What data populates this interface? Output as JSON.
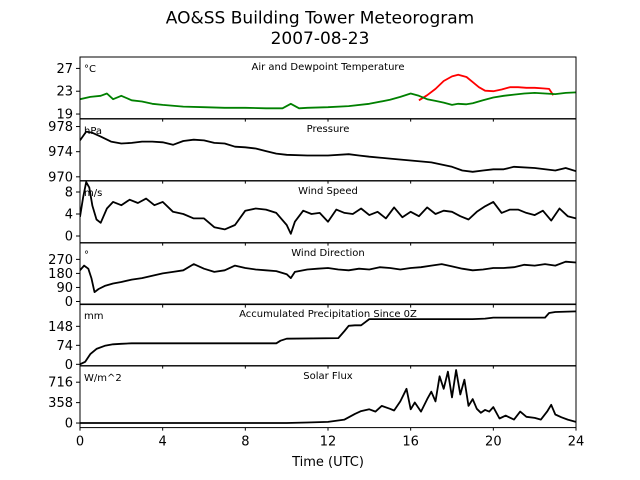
{
  "chart_data": {
    "type": "line",
    "title": "AO&SS Building Tower Meteorogram",
    "subtitle": "2007-08-23",
    "xlabel": "Time (UTC)",
    "xlim": [
      0,
      24
    ],
    "xticks": [
      0,
      4,
      8,
      12,
      16,
      20,
      24
    ],
    "xtick_labels": [
      "0",
      "4",
      "8",
      "12",
      "16",
      "20",
      "24"
    ],
    "panels": [
      {
        "id": "temperature",
        "title": "Air and Dewpoint Temperature",
        "unit": "°C",
        "ylim": [
          18.2,
          29.0
        ],
        "yticks": [
          19,
          23,
          27
        ],
        "ytick_labels": [
          "19",
          "23",
          "27"
        ],
        "series": [
          {
            "name": "",
            "role": "air-temperature",
            "color": "#ff0000",
            "x": [
              16.4,
              16.8,
              17.2,
              17.6,
              18.0,
              18.3,
              18.7,
              19.0,
              19.3,
              19.6,
              20.0,
              20.4,
              20.8,
              21.2,
              21.6,
              22.0,
              22.4,
              22.7,
              22.9
            ],
            "y": [
              21.4,
              22.3,
              23.4,
              24.8,
              25.6,
              25.9,
              25.5,
              24.6,
              23.7,
              23.1,
              23.0,
              23.3,
              23.7,
              23.7,
              23.6,
              23.6,
              23.5,
              23.4,
              22.3
            ]
          },
          {
            "name": "",
            "role": "dewpoint-temperature",
            "color": "#008000",
            "x": [
              0,
              0.5,
              1.0,
              1.3,
              1.6,
              2.0,
              2.5,
              3.0,
              3.5,
              4.0,
              5.0,
              6.0,
              7.0,
              8.0,
              9.0,
              9.8,
              10.2,
              10.6,
              11.0,
              12.0,
              13.0,
              14.0,
              15.0,
              15.5,
              16.0,
              16.4,
              16.8,
              17.2,
              17.6,
              18.0,
              18.3,
              18.7,
              19.0,
              19.5,
              20.0,
              20.5,
              21.0,
              21.5,
              22.0,
              22.5,
              23.0,
              23.5,
              24.0
            ],
            "y": [
              21.6,
              22.0,
              22.2,
              22.6,
              21.6,
              22.2,
              21.4,
              21.2,
              20.8,
              20.6,
              20.3,
              20.2,
              20.1,
              20.1,
              20.0,
              20.0,
              20.8,
              20.0,
              20.1,
              20.2,
              20.4,
              20.8,
              21.5,
              22.0,
              22.6,
              22.2,
              21.6,
              21.3,
              21.0,
              20.6,
              20.8,
              20.7,
              20.9,
              21.4,
              21.9,
              22.2,
              22.4,
              22.6,
              22.7,
              22.6,
              22.5,
              22.7,
              22.8
            ]
          }
        ]
      },
      {
        "id": "pressure",
        "title": "Pressure",
        "unit": "hPa",
        "ylim": [
          969.4,
          979.2
        ],
        "yticks": [
          970,
          974,
          978
        ],
        "ytick_labels": [
          "970",
          "974",
          "978"
        ],
        "series": [
          {
            "name": "",
            "role": "pressure",
            "color": "#000000",
            "x": [
              0,
              0.3,
              0.6,
              1.0,
              1.5,
              2.0,
              2.5,
              3.0,
              3.5,
              4.0,
              4.5,
              5.0,
              5.5,
              6.0,
              6.5,
              7.0,
              7.5,
              8.0,
              8.5,
              9.0,
              9.5,
              10.0,
              11.0,
              12.0,
              13.0,
              13.5,
              14.0,
              15.0,
              16.0,
              17.0,
              18.0,
              18.5,
              19.0,
              19.5,
              20.0,
              20.5,
              21.0,
              22.0,
              23.0,
              23.5,
              24.0
            ],
            "y": [
              975.8,
              977.2,
              977.0,
              976.4,
              975.6,
              975.3,
              975.4,
              975.6,
              975.6,
              975.5,
              975.1,
              975.7,
              975.9,
              975.8,
              975.4,
              975.3,
              974.8,
              974.7,
              974.5,
              974.1,
              973.7,
              973.5,
              973.4,
              973.4,
              973.6,
              973.4,
              973.2,
              972.9,
              972.6,
              972.3,
              971.6,
              971.0,
              970.8,
              971.0,
              971.2,
              971.2,
              971.6,
              971.4,
              971.0,
              971.4,
              970.9
            ]
          }
        ]
      },
      {
        "id": "wind-speed",
        "title": "Wind Speed",
        "unit": "m/s",
        "ylim": [
          -1.2,
          10.0
        ],
        "yticks": [
          0,
          4,
          8
        ],
        "ytick_labels": [
          "0",
          "4",
          "8"
        ],
        "series": [
          {
            "name": "",
            "role": "wind-speed",
            "color": "#000000",
            "x": [
              0,
              0.15,
              0.3,
              0.45,
              0.6,
              0.8,
              1.0,
              1.3,
              1.6,
              2.0,
              2.4,
              2.8,
              3.2,
              3.6,
              4.0,
              4.5,
              5.0,
              5.5,
              6.0,
              6.5,
              7.0,
              7.5,
              8.0,
              8.5,
              9.0,
              9.5,
              10.0,
              10.2,
              10.4,
              10.8,
              11.2,
              11.6,
              12.0,
              12.4,
              12.8,
              13.2,
              13.6,
              14.0,
              14.4,
              14.8,
              15.2,
              15.6,
              16.0,
              16.4,
              16.8,
              17.2,
              17.6,
              18.0,
              18.4,
              18.8,
              19.2,
              19.6,
              20.0,
              20.4,
              20.8,
              21.2,
              21.6,
              22.0,
              22.4,
              22.8,
              23.2,
              23.6,
              24.0
            ],
            "y": [
              3.5,
              7.0,
              9.8,
              8.8,
              5.5,
              3.0,
              2.4,
              5.0,
              6.2,
              5.6,
              6.6,
              6.0,
              6.8,
              5.6,
              6.2,
              4.4,
              4.0,
              3.2,
              3.2,
              1.6,
              1.2,
              2.0,
              4.6,
              5.0,
              4.8,
              4.2,
              2.0,
              0.4,
              2.6,
              4.6,
              4.0,
              4.2,
              2.6,
              4.8,
              4.2,
              4.0,
              5.0,
              3.8,
              4.4,
              3.2,
              5.2,
              3.4,
              4.4,
              3.6,
              5.2,
              4.0,
              4.6,
              4.4,
              3.6,
              3.0,
              4.4,
              5.4,
              6.2,
              4.2,
              4.8,
              4.8,
              4.2,
              3.8,
              4.6,
              2.8,
              5.0,
              3.6,
              3.2
            ]
          }
        ]
      },
      {
        "id": "wind-direction",
        "title": "Wind Direction",
        "unit": "°",
        "ylim": [
          -20,
          375
        ],
        "yticks": [
          0,
          90,
          180,
          270
        ],
        "ytick_labels": [
          "0",
          "90",
          "180",
          "270"
        ],
        "series": [
          {
            "name": "",
            "role": "wind-direction",
            "color": "#000000",
            "x": [
              0,
              0.2,
              0.4,
              0.55,
              0.7,
              0.9,
              1.2,
              1.6,
              2.0,
              2.5,
              3.0,
              3.5,
              4.0,
              4.5,
              5.0,
              5.5,
              6.0,
              6.5,
              7.0,
              7.5,
              8.0,
              8.5,
              9.0,
              9.5,
              10.0,
              10.2,
              10.4,
              11.0,
              11.5,
              12.0,
              12.5,
              13.0,
              13.5,
              14.0,
              14.5,
              15.0,
              15.5,
              16.0,
              16.5,
              17.0,
              17.5,
              18.0,
              18.5,
              19.0,
              19.5,
              20.0,
              20.5,
              21.0,
              21.5,
              22.0,
              22.5,
              23.0,
              23.5,
              24.0
            ],
            "y": [
              200,
              230,
              210,
              150,
              60,
              80,
              100,
              115,
              125,
              140,
              150,
              165,
              180,
              190,
              200,
              240,
              210,
              190,
              200,
              230,
              215,
              205,
              200,
              195,
              175,
              150,
              190,
              205,
              210,
              215,
              205,
              200,
              210,
              205,
              220,
              215,
              205,
              215,
              220,
              230,
              240,
              225,
              210,
              200,
              205,
              215,
              215,
              220,
              235,
              230,
              240,
              230,
              255,
              250
            ]
          }
        ]
      },
      {
        "id": "precipitation",
        "title": "Accumulated Precipitation Since 0Z",
        "unit": "mm",
        "ylim": [
          -5,
          235
        ],
        "yticks": [
          0,
          74,
          148
        ],
        "ytick_labels": [
          "0",
          "74",
          "148"
        ],
        "series": [
          {
            "name": "",
            "role": "accumulated-precipitation",
            "color": "#000000",
            "x": [
              0,
              0.25,
              0.5,
              0.8,
              1.2,
              1.6,
              2.0,
              2.5,
              3.0,
              9.0,
              9.5,
              9.7,
              10.0,
              12.5,
              12.8,
              13.0,
              13.3,
              13.6,
              14.0,
              19.0,
              19.6,
              20.0,
              22.5,
              22.7,
              23.0,
              24.0
            ],
            "y": [
              0,
              10,
              40,
              60,
              72,
              78,
              80,
              82,
              82,
              82,
              82,
              92,
              100,
              102,
              130,
              150,
              152,
              152,
              176,
              176,
              178,
              182,
              182,
              200,
              204,
              206
            ]
          }
        ]
      },
      {
        "id": "solar-flux",
        "title": "Solar Flux",
        "unit": "W/m^2",
        "ylim": [
          -80,
          1000
        ],
        "yticks": [
          0,
          358,
          716
        ],
        "ytick_labels": [
          "0",
          "358",
          "716"
        ],
        "series": [
          {
            "name": "",
            "role": "solar-flux",
            "color": "#000000",
            "x": [
              0,
              10.0,
              11.0,
              12.0,
              12.8,
              13.3,
              13.6,
              14.0,
              14.3,
              14.6,
              15.0,
              15.2,
              15.5,
              15.8,
              16.0,
              16.2,
              16.5,
              16.8,
              17.0,
              17.2,
              17.4,
              17.6,
              17.8,
              18.0,
              18.2,
              18.4,
              18.6,
              18.8,
              19.0,
              19.2,
              19.4,
              19.6,
              19.8,
              20.0,
              20.3,
              20.6,
              21.0,
              21.3,
              21.6,
              22.0,
              22.3,
              22.6,
              22.8,
              23.0,
              23.3,
              23.6,
              24.0
            ],
            "y": [
              0,
              0,
              10,
              20,
              60,
              160,
              210,
              240,
              200,
              300,
              250,
              220,
              380,
              600,
              240,
              360,
              200,
              420,
              550,
              380,
              820,
              600,
              900,
              450,
              930,
              500,
              760,
              300,
              420,
              250,
              180,
              230,
              200,
              280,
              80,
              130,
              60,
              200,
              110,
              90,
              60,
              200,
              320,
              150,
              100,
              60,
              20
            ]
          }
        ]
      }
    ]
  }
}
